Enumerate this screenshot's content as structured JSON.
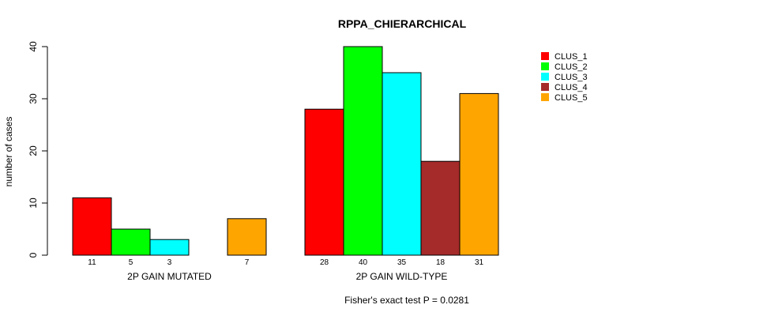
{
  "chart_data": {
    "type": "bar",
    "title": "RPPA_CHIERARCHICAL",
    "ylabel": "number of cases",
    "ylim": [
      0,
      40
    ],
    "yticks": [
      0,
      10,
      20,
      30,
      40
    ],
    "groups": [
      "2P GAIN MUTATED",
      "2P GAIN WILD-TYPE"
    ],
    "series": [
      {
        "name": "CLUS_1",
        "color": "#ff0000",
        "values": [
          11,
          28
        ]
      },
      {
        "name": "CLUS_2",
        "color": "#00ff00",
        "values": [
          5,
          40
        ]
      },
      {
        "name": "CLUS_3",
        "color": "#00ffff",
        "values": [
          3,
          35
        ]
      },
      {
        "name": "CLUS_4",
        "color": "#a52a2a",
        "values": [
          0,
          18
        ]
      },
      {
        "name": "CLUS_5",
        "color": "#ffa500",
        "values": [
          7,
          31
        ]
      }
    ],
    "footnote": "Fisher's exact test P = 0.0281",
    "legend_position": "top-right"
  }
}
